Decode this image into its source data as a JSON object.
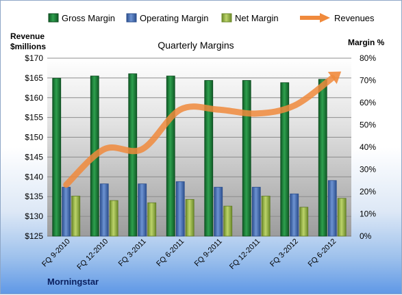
{
  "chart_data": {
    "type": "bar",
    "title": "Quarterly Margins",
    "left_axis_label_line1": "Revenue",
    "left_axis_label_line2": "$millions",
    "right_axis_label": "Margin %",
    "source": "Morningstar",
    "categories": [
      "FQ 9-2010",
      "FQ 12-2010",
      "FQ 3-2011",
      "FQ 6-2011",
      "FQ 9-2011",
      "FQ 12-2011",
      "FQ 3-2012",
      "FQ 6-2012"
    ],
    "left_axis": {
      "ylim": [
        125,
        170
      ],
      "ticks": [
        "$125",
        "$130",
        "$135",
        "$140",
        "$145",
        "$150",
        "$155",
        "$160",
        "$165",
        "$170"
      ]
    },
    "right_axis": {
      "ylim": [
        0,
        80
      ],
      "ticks": [
        "0%",
        "10%",
        "20%",
        "30%",
        "40%",
        "50%",
        "60%",
        "70%",
        "80%"
      ]
    },
    "series": [
      {
        "name": "Gross Margin",
        "axis": "right",
        "color": "#1f8a3c",
        "values": [
          71,
          72,
          73,
          72,
          70,
          70,
          69,
          70.5
        ]
      },
      {
        "name": "Operating Margin",
        "axis": "right",
        "color": "#4a72b8",
        "values": [
          22,
          23.5,
          23.5,
          24.5,
          22,
          22,
          19,
          25
        ]
      },
      {
        "name": "Net Margin",
        "axis": "right",
        "color": "#9cbb4a",
        "values": [
          18,
          16,
          15,
          16.5,
          13.5,
          18,
          13,
          17
        ]
      },
      {
        "name": "Revenues",
        "axis": "left",
        "color": "#f08a3c",
        "type": "line",
        "values": [
          138,
          147,
          147,
          157,
          157,
          156,
          158,
          165
        ]
      }
    ],
    "legend_position": "top"
  }
}
